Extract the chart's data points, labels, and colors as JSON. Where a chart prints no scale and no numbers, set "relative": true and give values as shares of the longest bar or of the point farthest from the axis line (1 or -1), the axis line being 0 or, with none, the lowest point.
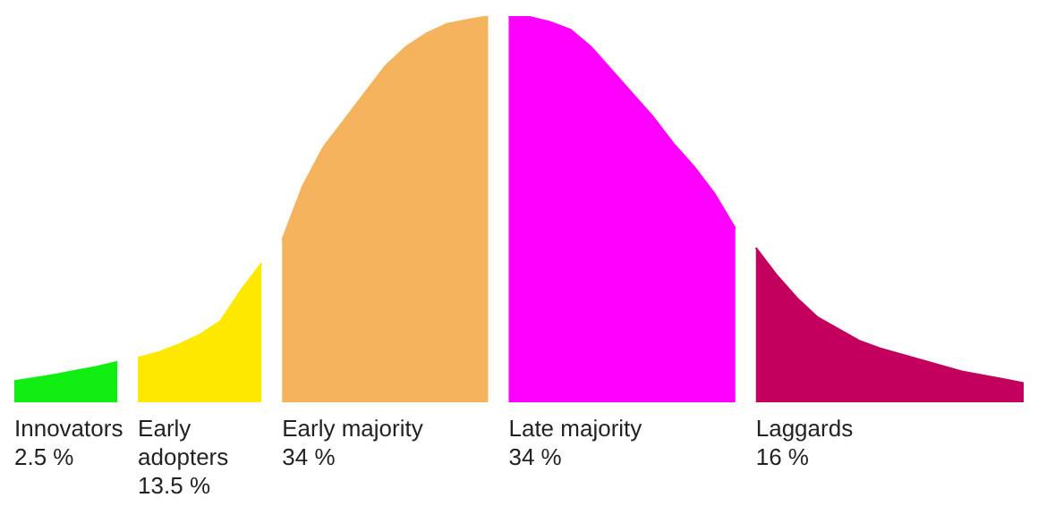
{
  "chart_data": {
    "type": "area",
    "relative": true,
    "categories": [
      null,
      null,
      null,
      null,
      null,
      null,
      null,
      null,
      null,
      null,
      null,
      null,
      null,
      null,
      null,
      null,
      null,
      null,
      null,
      null,
      null,
      null,
      null,
      null,
      null,
      null,
      null,
      null,
      null,
      null,
      null,
      null,
      null,
      null,
      null,
      null,
      null,
      null,
      null,
      null,
      null,
      null,
      null,
      null,
      null,
      null,
      null,
      null,
      null,
      null
    ],
    "series": [
      {
        "name": "Innovators",
        "color": "#11ee11",
        "values": [
          0.055,
          0.063,
          0.072,
          0.082,
          0.092,
          0.105,
          null,
          null,
          null,
          null,
          null,
          null,
          null,
          null,
          null,
          null,
          null,
          null,
          null,
          null,
          null,
          null,
          null,
          null,
          null,
          null,
          null,
          null,
          null,
          null,
          null,
          null,
          null,
          null,
          null,
          null,
          null,
          null,
          null,
          null,
          null,
          null,
          null,
          null,
          null,
          null,
          null,
          null,
          null,
          null
        ]
      },
      {
        "name": "Early adopters",
        "color": "#ffe800",
        "values": [
          null,
          null,
          null,
          null,
          null,
          null,
          0.115,
          0.13,
          0.15,
          0.175,
          0.21,
          0.29,
          0.36,
          null,
          null,
          null,
          null,
          null,
          null,
          null,
          null,
          null,
          null,
          null,
          null,
          null,
          null,
          null,
          null,
          null,
          null,
          null,
          null,
          null,
          null,
          null,
          null,
          null,
          null,
          null,
          null,
          null,
          null,
          null,
          null,
          null,
          null,
          null,
          null,
          null
        ]
      },
      {
        "name": "Early majority",
        "color": "#f4b35c",
        "values": [
          null,
          null,
          null,
          null,
          null,
          null,
          null,
          null,
          null,
          null,
          null,
          null,
          null,
          0.42,
          0.56,
          0.66,
          0.73,
          0.8,
          0.87,
          0.92,
          0.955,
          0.98,
          0.99,
          1,
          null,
          null,
          null,
          null,
          null,
          null,
          null,
          null,
          null,
          null,
          null,
          null,
          null,
          null,
          null,
          null,
          null,
          null,
          null,
          null,
          null,
          null,
          null,
          null,
          null,
          null
        ]
      },
      {
        "name": "Late majority",
        "color": "#ff00ff",
        "values": [
          null,
          null,
          null,
          null,
          null,
          null,
          null,
          null,
          null,
          null,
          null,
          null,
          null,
          null,
          null,
          null,
          null,
          null,
          null,
          null,
          null,
          null,
          null,
          null,
          1,
          0.998,
          0.985,
          0.965,
          0.92,
          0.86,
          0.8,
          0.74,
          0.67,
          0.61,
          0.54,
          0.45,
          null,
          null,
          null,
          null,
          null,
          null,
          null,
          null,
          null,
          null,
          null,
          null,
          null,
          null
        ]
      },
      {
        "name": "Laggards",
        "color": "#c4005e",
        "values": [
          null,
          null,
          null,
          null,
          null,
          null,
          null,
          null,
          null,
          null,
          null,
          null,
          null,
          null,
          null,
          null,
          null,
          null,
          null,
          null,
          null,
          null,
          null,
          null,
          null,
          null,
          null,
          null,
          null,
          null,
          null,
          null,
          null,
          null,
          null,
          null,
          0.4,
          0.33,
          0.27,
          0.22,
          0.19,
          0.16,
          0.14,
          0.125,
          0.11,
          0.095,
          0.08,
          0.07,
          0.06,
          0.05
        ]
      }
    ],
    "annotations": [
      "2.5 %",
      "13.5 %",
      "34 %",
      "34 %",
      "16 %"
    ]
  }
}
